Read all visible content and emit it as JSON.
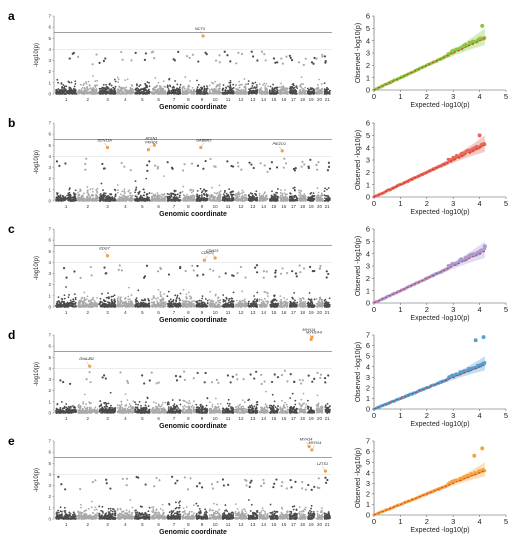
{
  "chart_data": [
    {
      "type": "scatter",
      "panel": "a",
      "xlabel": "Genomic coordinate",
      "ylabel": "-log10(p)",
      "ylim": [
        0,
        7
      ],
      "yticks": [
        0,
        1,
        2,
        3,
        4,
        5,
        6,
        7
      ],
      "chromosomes": [
        "1",
        "2",
        "3",
        "4",
        "5",
        "6",
        "7",
        "8",
        "9",
        "10",
        "11",
        "12",
        "13",
        "14",
        "15",
        "16",
        "17",
        "18",
        "19",
        "20",
        "21"
      ],
      "significance_line": 5.5,
      "suggestive_line": 4,
      "hits": [
        {
          "gene": "NCTX",
          "chr": 9.6,
          "y": 5.2
        }
      ]
    },
    {
      "type": "scatter",
      "panel": "b",
      "xlabel": "Genomic coordinate",
      "ylabel": "-log10(p)",
      "ylim": [
        0,
        7
      ],
      "yticks": [
        0,
        1,
        2,
        3,
        4,
        5,
        6,
        7
      ],
      "chromosomes": [
        "1",
        "2",
        "3",
        "4",
        "5",
        "6",
        "7",
        "8",
        "9",
        "10",
        "11",
        "12",
        "13",
        "14",
        "15",
        "16",
        "17",
        "18",
        "19",
        "20",
        "21"
      ],
      "significance_line": 5.5,
      "suggestive_line": 4,
      "hits": [
        {
          "gene": "SCN11A",
          "chr": 3.0,
          "y": 4.8
        },
        {
          "gene": "PKHD1",
          "chr": 5.9,
          "y": 4.6
        },
        {
          "gene": "ATXN1",
          "chr": 6.2,
          "y": 5.0
        },
        {
          "gene": "GABBR2",
          "chr": 9.4,
          "y": 4.8
        },
        {
          "gene": "PIEZO1",
          "chr": 16.3,
          "y": 4.5
        }
      ]
    },
    {
      "type": "scatter",
      "panel": "c",
      "xlabel": "Genomic coordinate",
      "ylabel": "-log10(p)",
      "ylim": [
        0,
        7
      ],
      "yticks": [
        0,
        1,
        2,
        3,
        4,
        5,
        6,
        7
      ],
      "chromosomes": [
        "1",
        "2",
        "3",
        "4",
        "5",
        "6",
        "7",
        "8",
        "9",
        "10",
        "11",
        "12",
        "13",
        "14",
        "15",
        "16",
        "17",
        "18",
        "19",
        "20",
        "21"
      ],
      "significance_line": 5.5,
      "suggestive_line": 4,
      "hits": [
        {
          "gene": "EDG7",
          "chr": 3.0,
          "y": 4.6
        },
        {
          "gene": "CDH23",
          "chr": 9.7,
          "y": 4.2
        },
        {
          "gene": "CDH23",
          "chr": 10.0,
          "y": 4.4
        }
      ]
    },
    {
      "type": "scatter",
      "panel": "d",
      "xlabel": "Genomic coordinate",
      "ylabel": "-log10(p)",
      "ylim": [
        0,
        7
      ],
      "yticks": [
        0,
        1,
        2,
        3,
        4,
        5,
        6,
        7
      ],
      "chromosomes": [
        "1",
        "2",
        "3",
        "4",
        "5",
        "6",
        "7",
        "8",
        "9",
        "10",
        "11",
        "12",
        "13",
        "14",
        "15",
        "16",
        "17",
        "18",
        "19",
        "20",
        "21"
      ],
      "significance_line": 5.5,
      "suggestive_line": 4,
      "hits": [
        {
          "gene": "DNAJB2",
          "chr": 2.6,
          "y": 4.2
        },
        {
          "gene": "MYH14-II",
          "chr": 19.0,
          "y": 6.6
        },
        {
          "gene": "MYH14",
          "chr": 19.6,
          "y": 6.8
        }
      ]
    },
    {
      "type": "scatter",
      "panel": "e",
      "xlabel": "Genomic coordinate",
      "ylabel": "-log10(p)",
      "ylim": [
        0,
        7
      ],
      "yticks": [
        0,
        1,
        2,
        3,
        4,
        5,
        6,
        7
      ],
      "chromosomes": [
        "1",
        "2",
        "3",
        "4",
        "5",
        "6",
        "7",
        "8",
        "9",
        "10",
        "11",
        "12",
        "13",
        "14",
        "15",
        "16",
        "17",
        "18",
        "19",
        "20",
        "21"
      ],
      "significance_line": 5.5,
      "suggestive_line": 4,
      "hits": [
        {
          "gene": "MYH14",
          "chr": 19.2,
          "y": 6.5
        },
        {
          "gene": "MYH14",
          "chr": 19.6,
          "y": 6.2
        },
        {
          "gene": "LZTS1",
          "chr": 21.2,
          "y": 4.3
        }
      ]
    }
  ],
  "qq_panels": [
    {
      "panel": "a",
      "color": "#8DC63F",
      "ylim": [
        0,
        6
      ],
      "yticks": [
        "0",
        "1",
        "2",
        "3",
        "4",
        "5",
        "6"
      ],
      "outliers": [
        {
          "x": 4.1,
          "y": 5.2
        }
      ]
    },
    {
      "panel": "b",
      "color": "#E8695A",
      "ylim": [
        0,
        6
      ],
      "yticks": [
        "0",
        "1",
        "2",
        "3",
        "4",
        "5",
        "6"
      ],
      "outliers": [
        {
          "x": 4.0,
          "y": 5.0
        }
      ]
    },
    {
      "panel": "c",
      "color": "#A99BD0",
      "ylim": [
        0,
        6
      ],
      "yticks": [
        "0",
        "1",
        "2",
        "3",
        "4",
        "5",
        "6"
      ],
      "outliers": [
        {
          "x": 4.2,
          "y": 4.6
        }
      ]
    },
    {
      "panel": "d",
      "color": "#5A9FCF",
      "ylim": [
        0,
        7
      ],
      "yticks": [
        "0",
        "1",
        "2",
        "3",
        "4",
        "5",
        "6",
        "7"
      ],
      "outliers": [
        {
          "x": 3.85,
          "y": 6.5
        },
        {
          "x": 4.15,
          "y": 6.8
        }
      ]
    },
    {
      "panel": "e",
      "color": "#F5A540",
      "ylim": [
        0,
        7
      ],
      "yticks": [
        "0",
        "1",
        "2",
        "3",
        "4",
        "5",
        "6",
        "7"
      ],
      "outliers": [
        {
          "x": 3.8,
          "y": 5.6
        },
        {
          "x": 4.1,
          "y": 6.3
        }
      ]
    }
  ],
  "qq_axes": {
    "xlabel": "Expected -log10(p)",
    "ylabel": "Observed -log10(p)",
    "xlim": [
      0,
      5
    ],
    "xticks": [
      "0",
      "1",
      "2",
      "3",
      "4",
      "5"
    ]
  },
  "colors": {
    "manhattan_dark": "#4a4a4a",
    "manhattan_light": "#a8a8a8",
    "hit": "#F0A04B"
  }
}
